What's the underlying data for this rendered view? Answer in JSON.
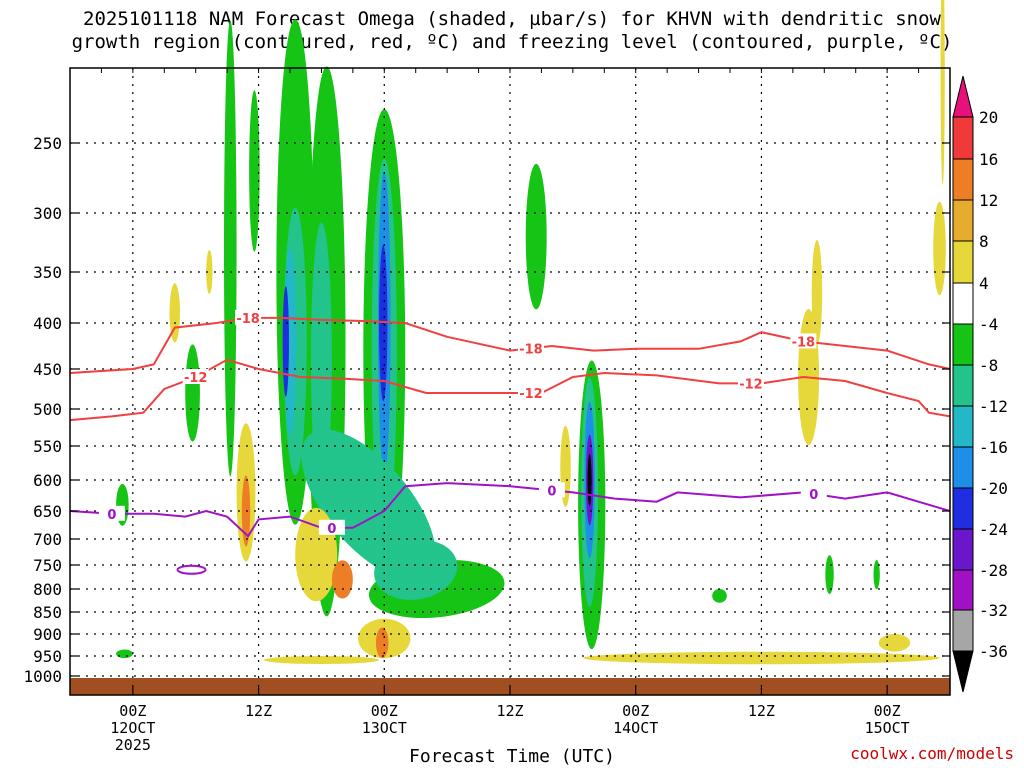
{
  "chart_data": {
    "type": "heatmap",
    "title_line1": "2025101118 NAM Forecast Omega (shaded, µbar/s) for KHVN with dendritic snow",
    "title_line2": "growth region (contoured, red, ºC) and freezing level (contoured, purple, ºC)",
    "xlabel": "Forecast Time (UTC)",
    "ylabel": "Pressure (mb)",
    "credit": "coolwx.com/models",
    "y_ticks": [
      250,
      300,
      350,
      400,
      450,
      500,
      550,
      600,
      650,
      700,
      750,
      800,
      850,
      900,
      950,
      1000
    ],
    "y_tick_labels": [
      "250",
      "300",
      "350",
      "400",
      "450",
      "500",
      "550",
      "600",
      "650",
      "700",
      "750",
      "800",
      "850",
      "900",
      "950",
      "1000"
    ],
    "x_ticks": [
      {
        "hour": 6,
        "line1": "00Z",
        "line2": "12OCT",
        "line3": "2025"
      },
      {
        "hour": 18,
        "line1": "12Z",
        "line2": "",
        "line3": ""
      },
      {
        "hour": 30,
        "line1": "00Z",
        "line2": "13OCT",
        "line3": ""
      },
      {
        "hour": 42,
        "line1": "12Z",
        "line2": "",
        "line3": ""
      },
      {
        "hour": 54,
        "line1": "00Z",
        "line2": "14OCT",
        "line3": ""
      },
      {
        "hour": 66,
        "line1": "12Z",
        "line2": "",
        "line3": ""
      },
      {
        "hour": 78,
        "line1": "00Z",
        "line2": "15OCT",
        "line3": ""
      }
    ],
    "x_range_hours": [
      0,
      84
    ],
    "colorbar": {
      "labels": [
        "20",
        "16",
        "12",
        "8",
        "4",
        "-4",
        "-8",
        "-12",
        "-16",
        "-20",
        "-24",
        "-28",
        "-32",
        "-36"
      ],
      "colors": [
        "#e8107a",
        "#f03a3a",
        "#ee7e26",
        "#e6ac2e",
        "#e6d83a",
        "#ffffff",
        "#16c416",
        "#22c48c",
        "#22b8c8",
        "#1e8ee8",
        "#1e2ee0",
        "#6a16cc",
        "#a010c4",
        "#a6a6a6",
        "#000000"
      ]
    },
    "contours": {
      "minus18": {
        "label": "-18",
        "color": "#f04040",
        "label_text": [
          "-18",
          "-18",
          "-18"
        ],
        "points": [
          [
            0,
            455
          ],
          [
            6,
            450
          ],
          [
            8,
            445
          ],
          [
            10,
            405
          ],
          [
            14,
            400
          ],
          [
            17,
            395
          ],
          [
            20,
            395
          ],
          [
            24,
            397
          ],
          [
            28,
            398
          ],
          [
            32,
            400
          ],
          [
            36,
            415
          ],
          [
            42,
            430
          ],
          [
            46,
            425
          ],
          [
            50,
            430
          ],
          [
            54,
            428
          ],
          [
            60,
            428
          ],
          [
            64,
            420
          ],
          [
            66,
            410
          ],
          [
            70,
            420
          ],
          [
            74,
            425
          ],
          [
            78,
            430
          ],
          [
            82,
            445
          ],
          [
            84,
            450
          ]
        ]
      },
      "minus12": {
        "label": "-12",
        "color": "#f04040",
        "label_text": [
          "-12",
          "-12",
          "-12"
        ],
        "points": [
          [
            0,
            515
          ],
          [
            4,
            510
          ],
          [
            7,
            505
          ],
          [
            9,
            475
          ],
          [
            12,
            460
          ],
          [
            15,
            440
          ],
          [
            18,
            450
          ],
          [
            22,
            460
          ],
          [
            26,
            462
          ],
          [
            30,
            465
          ],
          [
            34,
            480
          ],
          [
            40,
            480
          ],
          [
            45,
            480
          ],
          [
            48,
            460
          ],
          [
            51,
            455
          ],
          [
            56,
            458
          ],
          [
            62,
            468
          ],
          [
            66,
            468
          ],
          [
            70,
            460
          ],
          [
            74,
            465
          ],
          [
            78,
            480
          ],
          [
            81,
            490
          ],
          [
            82,
            505
          ],
          [
            84,
            510
          ]
        ]
      },
      "freezing": {
        "label": "0",
        "color": "#a012c8",
        "label_text": [
          "0",
          "0",
          "0",
          "0"
        ],
        "points": [
          [
            0,
            650
          ],
          [
            4,
            655
          ],
          [
            8,
            655
          ],
          [
            11,
            660
          ],
          [
            13,
            650
          ],
          [
            15,
            660
          ],
          [
            17,
            695
          ],
          [
            18,
            665
          ],
          [
            21,
            660
          ],
          [
            24,
            680
          ],
          [
            27,
            680
          ],
          [
            30,
            650
          ],
          [
            32,
            610
          ],
          [
            36,
            605
          ],
          [
            42,
            610
          ],
          [
            48,
            620
          ],
          [
            52,
            630
          ],
          [
            56,
            635
          ],
          [
            58,
            620
          ],
          [
            64,
            628
          ],
          [
            70,
            620
          ],
          [
            74,
            630
          ],
          [
            78,
            620
          ],
          [
            82,
            640
          ],
          [
            84,
            650
          ]
        ]
      }
    },
    "shaded_regions": [
      {
        "level": -8,
        "color": "#16c416",
        "cells": "upward motion bands near 13OCT 00Z and 13OCT 18Z"
      },
      {
        "level": 4,
        "color": "#e6d83a",
        "cells": "weak subsidence near surface and mid levels"
      }
    ]
  }
}
